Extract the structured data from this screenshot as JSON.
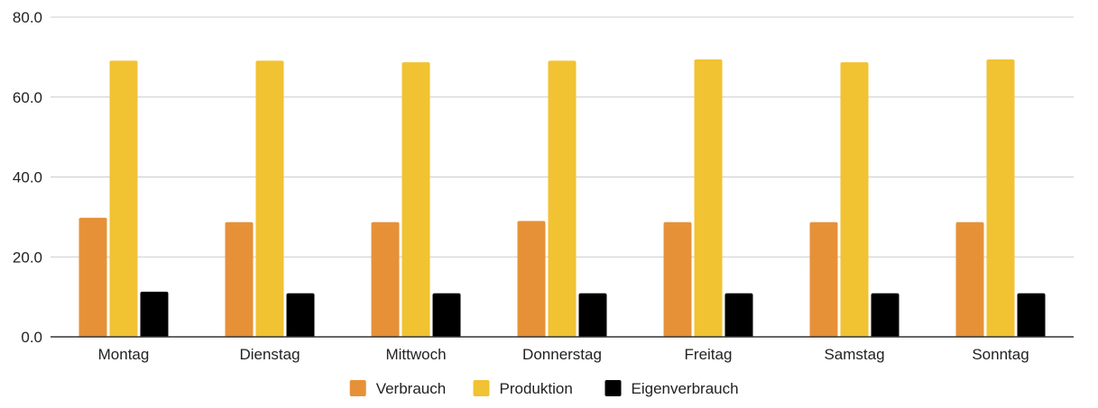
{
  "chart_data": {
    "type": "bar",
    "categories": [
      "Montag",
      "Dienstag",
      "Mittwoch",
      "Donnerstag",
      "Freitag",
      "Samstag",
      "Sonntag"
    ],
    "series": [
      {
        "name": "Verbrauch",
        "color": "#e69138",
        "values": [
          29.8,
          28.7,
          28.7,
          29.0,
          28.7,
          28.7,
          28.7
        ]
      },
      {
        "name": "Produktion",
        "color": "#f1c232",
        "values": [
          69.1,
          69.1,
          68.7,
          69.1,
          69.4,
          68.7,
          69.4
        ]
      },
      {
        "name": "Eigenverbrauch",
        "color": "#000000",
        "values": [
          11.3,
          10.9,
          10.9,
          10.9,
          10.9,
          10.9,
          10.9
        ]
      }
    ],
    "yticks": [
      "0.0",
      "20.0",
      "40.0",
      "60.0",
      "80.0"
    ],
    "ylim": [
      0,
      80
    ],
    "title": "",
    "xlabel": "",
    "ylabel": "",
    "grid": true,
    "legend_position": "bottom"
  }
}
